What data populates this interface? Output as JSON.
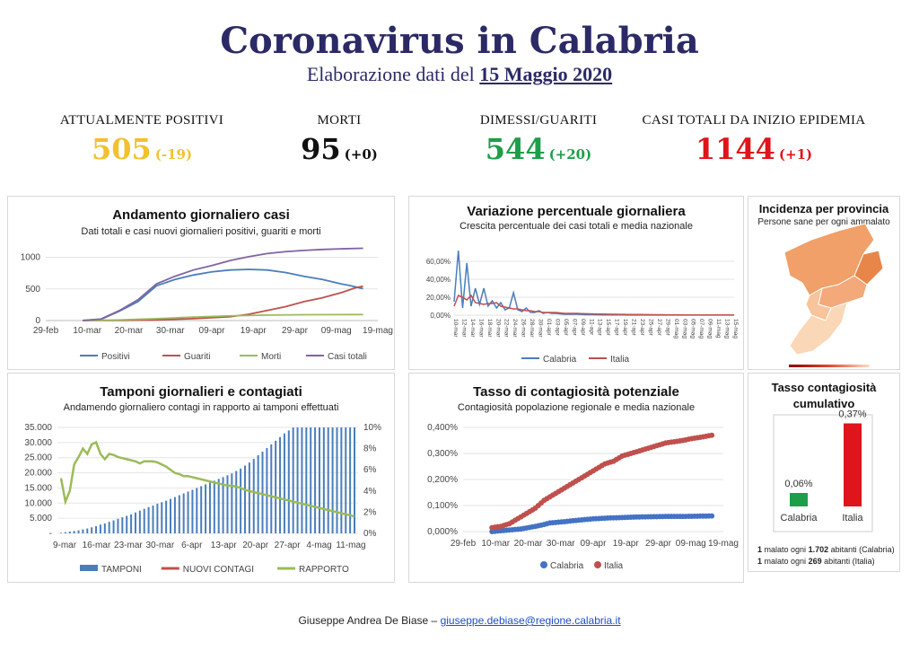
{
  "header": {
    "title": "Coronavirus in Calabria",
    "subtitle_prefix": "Elaborazione dati del",
    "subtitle_date": "15 Maggio 2020"
  },
  "stats": [
    {
      "label": "ATTUALMENTE POSITIVI",
      "value": "505",
      "delta": "(-19)",
      "color": "#f2c12e"
    },
    {
      "label": "MORTI",
      "value": "95",
      "delta": "(+0)",
      "color": "#111111"
    },
    {
      "label": "DIMESSI/GUARITI",
      "value": "544",
      "delta": "(+20)",
      "color": "#1e9e4a"
    },
    {
      "label": "CASI TOTALI DA INIZIO EPIDEMIA",
      "value": "1144",
      "delta": "(+1)",
      "color": "#e0141b"
    }
  ],
  "panels": {
    "cases": {
      "title": "Andamento giornaliero casi",
      "subtitle": "Dati totali e casi nuovi giornalieri positivi, guariti e morti"
    },
    "variation": {
      "title": "Variazione percentuale giornaliera",
      "subtitle": "Crescita percentuale dei casi totali e media nazionale"
    },
    "province": {
      "title": "Incidenza per provincia",
      "subtitle": "Persone sane per ogni ammalato"
    },
    "tests": {
      "title": "Tamponi giornalieri e contagiati",
      "subtitle": "Andamendo giornaliero contagi in rapporto ai tamponi effettuati"
    },
    "contagion": {
      "title": "Tasso di contagiosità potenziale",
      "subtitle": "Contagiosità popolazione regionale e media nazionale"
    },
    "cumulative": {
      "title_line1": "Tasso contagiosità",
      "title_line2": "cumulativo",
      "note1_num": "1",
      "note1_a": "malato ogni",
      "note1_num2": "1.702",
      "note1_b": "abitanti (Calabria)",
      "note2_num": "1",
      "note2_a": "malato ogni",
      "note2_num2": "269",
      "note2_b": "abitanti (Italia)"
    }
  },
  "footer": {
    "author": "Giuseppe Andrea De Biase –",
    "email": "giuseppe.debiase@regione.calabria.it"
  },
  "chart_data": [
    {
      "id": "cases",
      "type": "line",
      "x_ticks": [
        "29-feb",
        "10-mar",
        "20-mar",
        "30-mar",
        "09-apr",
        "19-apr",
        "29-apr",
        "09-mag",
        "19-mag"
      ],
      "ylim": [
        0,
        1000
      ],
      "y_ticks": [
        "0",
        "500",
        "1000"
      ],
      "series": [
        {
          "name": "Positivi",
          "color": "#4a7ebb",
          "points": [
            [
              10,
              2
            ],
            [
              15,
              20
            ],
            [
              20,
              150
            ],
            [
              25,
              300
            ],
            [
              30,
              550
            ],
            [
              35,
              650
            ],
            [
              40,
              720
            ],
            [
              45,
              770
            ],
            [
              50,
              800
            ],
            [
              55,
              810
            ],
            [
              60,
              800
            ],
            [
              65,
              760
            ],
            [
              70,
              700
            ],
            [
              75,
              650
            ],
            [
              80,
              580
            ],
            [
              82,
              560
            ],
            [
              86,
              505
            ]
          ]
        },
        {
          "name": "Guariti",
          "color": "#c0504d",
          "points": [
            [
              10,
              0
            ],
            [
              20,
              2
            ],
            [
              30,
              10
            ],
            [
              40,
              30
            ],
            [
              50,
              60
            ],
            [
              55,
              100
            ],
            [
              60,
              160
            ],
            [
              65,
              220
            ],
            [
              70,
              300
            ],
            [
              75,
              360
            ],
            [
              80,
              440
            ],
            [
              84,
              520
            ],
            [
              86,
              544
            ]
          ]
        },
        {
          "name": "Morti",
          "color": "#9bbb59",
          "points": [
            [
              10,
              0
            ],
            [
              20,
              10
            ],
            [
              30,
              30
            ],
            [
              40,
              55
            ],
            [
              50,
              75
            ],
            [
              60,
              87
            ],
            [
              70,
              92
            ],
            [
              80,
              94
            ],
            [
              86,
              95
            ]
          ]
        },
        {
          "name": "Casi totali",
          "color": "#8064a2",
          "points": [
            [
              10,
              2
            ],
            [
              15,
              25
            ],
            [
              20,
              160
            ],
            [
              25,
              330
            ],
            [
              30,
              580
            ],
            [
              35,
              700
            ],
            [
              40,
              800
            ],
            [
              45,
              870
            ],
            [
              50,
              950
            ],
            [
              55,
              1010
            ],
            [
              60,
              1060
            ],
            [
              65,
              1090
            ],
            [
              70,
              1110
            ],
            [
              75,
              1125
            ],
            [
              80,
              1135
            ],
            [
              86,
              1144
            ]
          ]
        }
      ]
    },
    {
      "id": "variation",
      "type": "line",
      "ylim": [
        0,
        0.8
      ],
      "y_ticks": [
        "0,00%",
        "20,00%",
        "40,00%",
        "60,00%"
      ],
      "x_ticks": [
        "10-mar",
        "12-mar",
        "14-mar",
        "16-mar",
        "18-mar",
        "20-mar",
        "22-mar",
        "24-mar",
        "26-mar",
        "28-mar",
        "30-mar",
        "01-apr",
        "03-apr",
        "05-apr",
        "07-apr",
        "09-apr",
        "11-apr",
        "13-apr",
        "15-apr",
        "17-apr",
        "19-apr",
        "21-apr",
        "23-apr",
        "25-apr",
        "27-apr",
        "29-apr",
        "01-mag",
        "03-mag",
        "05-mag",
        "07-mag",
        "09-mag",
        "11-mag",
        "13-mag",
        "15-mag"
      ],
      "series": [
        {
          "name": "Calabria",
          "color": "#4a7ebb",
          "values": [
            0.15,
            0.72,
            0.08,
            0.58,
            0.1,
            0.3,
            0.12,
            0.3,
            0.1,
            0.16,
            0.08,
            0.14,
            0.06,
            0.08,
            0.25,
            0.06,
            0.04,
            0.08,
            0.03,
            0.03,
            0.05,
            0.02,
            0.03,
            0.02,
            0.02,
            0.015,
            0.01,
            0.01,
            0.01,
            0.01,
            0.008,
            0.005,
            0.005,
            0.005,
            0.004,
            0.003,
            0.003,
            0.002,
            0.002,
            0.002,
            0.002,
            0.001,
            0.001,
            0.001,
            0.001,
            0.001,
            0.001,
            0.001,
            0.001,
            0.001,
            0.001,
            0.001,
            0.001,
            0.001,
            0.001,
            0.001,
            0.001,
            0.001,
            0.001,
            0.001,
            0.001,
            0.001,
            0.001,
            0.001,
            0.001,
            0.001,
            0.001
          ]
        },
        {
          "name": "Italia",
          "color": "#c0504d",
          "values": [
            0.1,
            0.22,
            0.2,
            0.17,
            0.22,
            0.14,
            0.13,
            0.12,
            0.13,
            0.13,
            0.14,
            0.1,
            0.09,
            0.08,
            0.07,
            0.07,
            0.06,
            0.05,
            0.05,
            0.04,
            0.04,
            0.03,
            0.03,
            0.03,
            0.03,
            0.025,
            0.02,
            0.02,
            0.02,
            0.02,
            0.018,
            0.016,
            0.015,
            0.014,
            0.013,
            0.012,
            0.011,
            0.01,
            0.01,
            0.009,
            0.009,
            0.008,
            0.008,
            0.007,
            0.007,
            0.006,
            0.006,
            0.005,
            0.005,
            0.005,
            0.004,
            0.004,
            0.004,
            0.004,
            0.003,
            0.003,
            0.003,
            0.003,
            0.003,
            0.003,
            0.002,
            0.002,
            0.002,
            0.002,
            0.002,
            0.002,
            0.002
          ]
        }
      ]
    },
    {
      "id": "tests",
      "type": "bar+line",
      "x_ticks": [
        "9-mar",
        "16-mar",
        "23-mar",
        "30-mar",
        "6-apr",
        "13-apr",
        "20-apr",
        "27-apr",
        "4-mag",
        "11-mag"
      ],
      "ylim_left": [
        0,
        35000
      ],
      "y_ticks_left": [
        "-",
        "5.000",
        "10.000",
        "15.000",
        "20.000",
        "25.000",
        "30.000",
        "35.000"
      ],
      "ylim_right": [
        0,
        0.1
      ],
      "y_ticks_right": [
        "0%",
        "2%",
        "4%",
        "6%",
        "8%",
        "10%"
      ],
      "series": [
        {
          "name": "TAMPONI",
          "color": "#4a7ebb",
          "kind": "bar",
          "values": [
            200,
            400,
            600,
            800,
            1000,
            1300,
            1600,
            2000,
            2400,
            2900,
            3300,
            3800,
            4300,
            4800,
            5300,
            5800,
            6300,
            6900,
            7500,
            8100,
            8700,
            9200,
            9800,
            10300,
            10800,
            11400,
            12000,
            12600,
            13200,
            13800,
            14400,
            15000,
            15600,
            16200,
            16800,
            17400,
            18000,
            18600,
            19200,
            19800,
            20600,
            21400,
            22400,
            23400,
            24600,
            25800,
            27000,
            28200,
            29400,
            30600,
            31800,
            33000,
            34000,
            35000,
            35000,
            35000,
            35000,
            35000,
            35000,
            35000,
            35000,
            35000,
            35000,
            35000,
            35000,
            35000,
            35000,
            35000
          ]
        },
        {
          "name": "NUOVI CONTAGI",
          "color": "#c0504d",
          "kind": "line",
          "values": []
        },
        {
          "name": "RAPPORTO",
          "color": "#9bbb59",
          "kind": "line",
          "values": [
            0.052,
            0.03,
            0.04,
            0.065,
            0.072,
            0.08,
            0.075,
            0.084,
            0.086,
            0.075,
            0.07,
            0.075,
            0.074,
            0.072,
            0.071,
            0.07,
            0.069,
            0.068,
            0.066,
            0.068,
            0.068,
            0.068,
            0.067,
            0.065,
            0.063,
            0.06,
            0.057,
            0.056,
            0.054,
            0.054,
            0.053,
            0.052,
            0.051,
            0.05,
            0.049,
            0.048,
            0.047,
            0.046,
            0.045,
            0.045,
            0.044,
            0.043,
            0.041,
            0.04,
            0.039,
            0.038,
            0.037,
            0.036,
            0.035,
            0.034,
            0.033,
            0.032,
            0.031,
            0.03,
            0.029,
            0.028,
            0.027,
            0.026,
            0.025,
            0.024,
            0.023,
            0.022,
            0.021,
            0.02,
            0.019,
            0.018,
            0.017,
            0.016
          ]
        }
      ]
    },
    {
      "id": "contagion",
      "type": "scatter",
      "x_ticks": [
        "29-feb",
        "10-mar",
        "20-mar",
        "30-mar",
        "09-apr",
        "19-apr",
        "29-apr",
        "09-mag",
        "19-mag"
      ],
      "ylim": [
        0,
        0.004
      ],
      "y_ticks": [
        "0,000%",
        "0,100%",
        "0,200%",
        "0,300%",
        "0,400%"
      ],
      "series": [
        {
          "name": "Calabria",
          "color": "#4472c4",
          "points": [
            [
              10,
              0.0
            ],
            [
              15,
              5e-05
            ],
            [
              20,
              0.0001
            ],
            [
              25,
              0.0002
            ],
            [
              28,
              0.00027
            ],
            [
              30,
              0.00033
            ],
            [
              35,
              0.00038
            ],
            [
              40,
              0.00044
            ],
            [
              45,
              0.00049
            ],
            [
              50,
              0.00052
            ],
            [
              55,
              0.00054
            ],
            [
              60,
              0.00056
            ],
            [
              65,
              0.00057
            ],
            [
              70,
              0.00058
            ],
            [
              75,
              0.00058
            ],
            [
              80,
              0.00059
            ],
            [
              86,
              0.0006
            ]
          ]
        },
        {
          "name": "Italia",
          "color": "#c0504d",
          "points": [
            [
              10,
              0.00015
            ],
            [
              13,
              0.0002
            ],
            [
              16,
              0.0003
            ],
            [
              19,
              0.0005
            ],
            [
              22,
              0.0007
            ],
            [
              25,
              0.0009
            ],
            [
              28,
              0.0012
            ],
            [
              31,
              0.0014
            ],
            [
              34,
              0.0016
            ],
            [
              37,
              0.0018
            ],
            [
              40,
              0.002
            ],
            [
              43,
              0.0022
            ],
            [
              46,
              0.0024
            ],
            [
              49,
              0.0026
            ],
            [
              52,
              0.0027
            ],
            [
              55,
              0.0029
            ],
            [
              58,
              0.003
            ],
            [
              61,
              0.0031
            ],
            [
              64,
              0.0032
            ],
            [
              67,
              0.0033
            ],
            [
              70,
              0.0034
            ],
            [
              73,
              0.00345
            ],
            [
              76,
              0.0035
            ],
            [
              79,
              0.00357
            ],
            [
              82,
              0.00362
            ],
            [
              86,
              0.0037
            ]
          ]
        }
      ]
    },
    {
      "id": "cumulative",
      "type": "bar",
      "categories": [
        "Calabria",
        "Italia"
      ],
      "values": [
        0.0006,
        0.0037
      ],
      "value_labels": [
        "0,06%",
        "0,37%"
      ],
      "colors": [
        "#1e9e4a",
        "#e0141b"
      ],
      "ylim": [
        0,
        0.004
      ]
    }
  ]
}
